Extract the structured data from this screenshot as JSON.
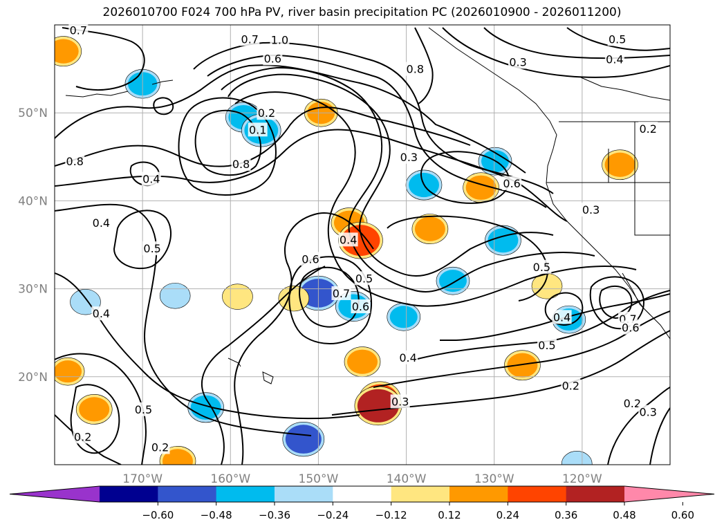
{
  "chart_data": {
    "type": "contour",
    "title": "2026010700 F024 700 hPa PV, river basin precipitation PC (2026010900 - 2026011200)",
    "lon_range": [
      -180,
      -110
    ],
    "lat_range": [
      10,
      60
    ],
    "lon_ticks": [
      "170°W",
      "160°W",
      "150°W",
      "140°W",
      "130°W",
      "120°W"
    ],
    "lon_tick_values": [
      -170,
      -160,
      -150,
      -140,
      -130,
      -120
    ],
    "lat_ticks": [
      "50°N",
      "40°N",
      "30°N",
      "20°N"
    ],
    "lat_tick_values": [
      50,
      40,
      30,
      20
    ],
    "grid": true,
    "colorbar": {
      "placement": "bottom",
      "tick_labels": [
        "−0.60",
        "−0.48",
        "−0.36",
        "−0.24",
        "−0.12",
        "0.12",
        "0.24",
        "0.36",
        "0.48",
        "0.60"
      ],
      "bounds": [
        -0.6,
        -0.48,
        -0.36,
        -0.24,
        -0.12,
        0.12,
        0.24,
        0.36,
        0.48,
        0.6
      ],
      "colors": [
        "#9933cc",
        "#000090",
        "#3355cc",
        "#00bbee",
        "#aaddf8",
        "#ffffff",
        "#ffe680",
        "#ff9900",
        "#ff4400",
        "#b22222",
        "#ff88aa"
      ],
      "extend": "both"
    },
    "contour_labels": [
      {
        "text": "0.7",
        "lon": -177.3,
        "lat": 59.4
      },
      {
        "text": "0.7",
        "lon": -157.8,
        "lat": 58.4
      },
      {
        "text": "1.0",
        "lon": -154.4,
        "lat": 58.3
      },
      {
        "text": "0.6",
        "lon": -155.2,
        "lat": 56.2
      },
      {
        "text": "0.8",
        "lon": -139.0,
        "lat": 55.0
      },
      {
        "text": "0.3",
        "lon": -127.3,
        "lat": 55.8
      },
      {
        "text": "0.5",
        "lon": -116.0,
        "lat": 58.4
      },
      {
        "text": "0.4",
        "lon": -116.3,
        "lat": 56.1
      },
      {
        "text": "0.2",
        "lon": -155.9,
        "lat": 50.0
      },
      {
        "text": "0.1",
        "lon": -156.9,
        "lat": 48.1
      },
      {
        "text": "0.8",
        "lon": -158.8,
        "lat": 44.2
      },
      {
        "text": "0.8",
        "lon": -177.7,
        "lat": 44.5
      },
      {
        "text": "0.4",
        "lon": -169.0,
        "lat": 42.5
      },
      {
        "text": "0.2",
        "lon": -112.5,
        "lat": 48.2
      },
      {
        "text": "0.3",
        "lon": -139.7,
        "lat": 45.0
      },
      {
        "text": "0.6",
        "lon": -128.0,
        "lat": 42.0
      },
      {
        "text": "0.3",
        "lon": -119.0,
        "lat": 39.0
      },
      {
        "text": "0.4",
        "lon": -174.7,
        "lat": 37.5
      },
      {
        "text": "0.5",
        "lon": -168.9,
        "lat": 34.6
      },
      {
        "text": "0.6",
        "lon": -150.9,
        "lat": 33.4
      },
      {
        "text": "0.4",
        "lon": -146.6,
        "lat": 35.6
      },
      {
        "text": "0.5",
        "lon": -144.8,
        "lat": 31.2
      },
      {
        "text": "0.5",
        "lon": -124.6,
        "lat": 32.5
      },
      {
        "text": "0.7",
        "lon": -147.4,
        "lat": 29.5
      },
      {
        "text": "0.6",
        "lon": -145.2,
        "lat": 28.0
      },
      {
        "text": "0.4",
        "lon": -174.7,
        "lat": 27.2
      },
      {
        "text": "0.4",
        "lon": -122.3,
        "lat": 26.8
      },
      {
        "text": "0.7",
        "lon": -114.8,
        "lat": 26.6
      },
      {
        "text": "0.6",
        "lon": -114.5,
        "lat": 25.6
      },
      {
        "text": "0.5",
        "lon": -124.0,
        "lat": 23.6
      },
      {
        "text": "0.4",
        "lon": -139.8,
        "lat": 22.2
      },
      {
        "text": "0.3",
        "lon": -140.7,
        "lat": 17.2
      },
      {
        "text": "0.2",
        "lon": -121.3,
        "lat": 19.0
      },
      {
        "text": "0.2",
        "lon": -114.3,
        "lat": 17.0
      },
      {
        "text": "0.3",
        "lon": -112.5,
        "lat": 16.0
      },
      {
        "text": "0.5",
        "lon": -169.9,
        "lat": 16.3
      },
      {
        "text": "0.2",
        "lon": -176.8,
        "lat": 13.2
      },
      {
        "text": "0.2",
        "lon": -168.0,
        "lat": 12.0
      }
    ],
    "shaded_regions": [
      {
        "value": -0.3,
        "lon": -158.5,
        "lat": 49.5
      },
      {
        "value": -0.36,
        "lon": -156.5,
        "lat": 48.0
      },
      {
        "value": -0.28,
        "lon": -170.0,
        "lat": 53.3
      },
      {
        "value": 0.3,
        "lon": -179.0,
        "lat": 57.0
      },
      {
        "value": 0.25,
        "lon": -149.7,
        "lat": 50.0
      },
      {
        "value": -0.3,
        "lon": -138.0,
        "lat": 41.8
      },
      {
        "value": 0.3,
        "lon": -131.5,
        "lat": 41.5
      },
      {
        "value": 0.3,
        "lon": -115.7,
        "lat": 44.1
      },
      {
        "value": -0.25,
        "lon": -129.9,
        "lat": 44.5
      },
      {
        "value": 0.3,
        "lon": -146.5,
        "lat": 37.5
      },
      {
        "value": 0.45,
        "lon": -145.2,
        "lat": 35.5
      },
      {
        "value": 0.3,
        "lon": -137.3,
        "lat": 36.8
      },
      {
        "value": -0.3,
        "lon": -129.0,
        "lat": 35.5
      },
      {
        "value": -0.25,
        "lon": -134.7,
        "lat": 30.9
      },
      {
        "value": -0.4,
        "lon": -150.0,
        "lat": 29.5
      },
      {
        "value": -0.3,
        "lon": -146.0,
        "lat": 28.0
      },
      {
        "value": -0.25,
        "lon": -140.3,
        "lat": 26.8
      },
      {
        "value": 0.2,
        "lon": -124.0,
        "lat": 30.3
      },
      {
        "value": -0.25,
        "lon": -121.5,
        "lat": 26.5
      },
      {
        "value": -0.2,
        "lon": -176.5,
        "lat": 28.5
      },
      {
        "value": -0.2,
        "lon": -166.3,
        "lat": 29.2
      },
      {
        "value": 0.2,
        "lon": -159.2,
        "lat": 29.1
      },
      {
        "value": 0.2,
        "lon": -152.8,
        "lat": 28.9
      },
      {
        "value": 0.3,
        "lon": -145.0,
        "lat": 21.7
      },
      {
        "value": 0.4,
        "lon": -143.0,
        "lat": 17.5
      },
      {
        "value": 0.5,
        "lon": -143.2,
        "lat": 16.7
      },
      {
        "value": 0.3,
        "lon": -126.8,
        "lat": 21.3
      },
      {
        "value": 0.25,
        "lon": -178.5,
        "lat": 20.6
      },
      {
        "value": 0.3,
        "lon": -175.5,
        "lat": 16.3
      },
      {
        "value": -0.3,
        "lon": -162.8,
        "lat": 16.5
      },
      {
        "value": -0.4,
        "lon": -151.7,
        "lat": 12.9
      },
      {
        "value": 0.3,
        "lon": -166.0,
        "lat": 10.4
      },
      {
        "value": -0.2,
        "lon": -120.6,
        "lat": 10.1
      }
    ]
  }
}
